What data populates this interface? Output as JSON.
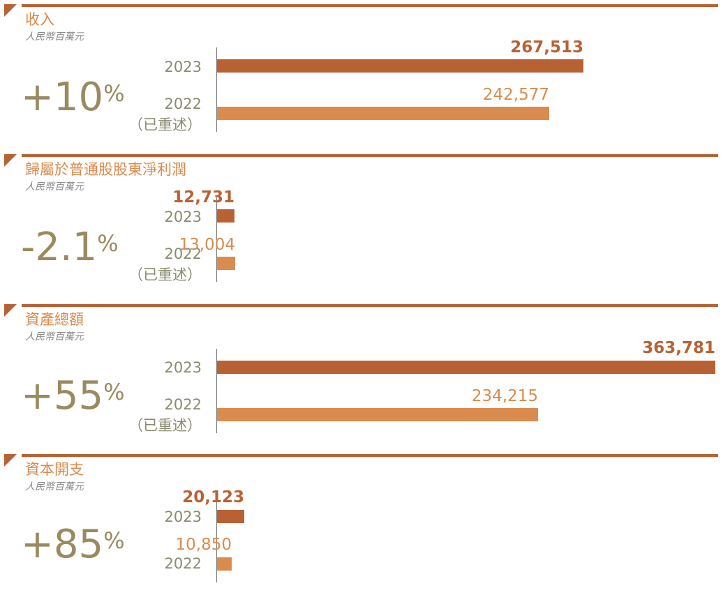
{
  "colors": {
    "current": "#b86234",
    "previous": "#d98c4e",
    "percent": "#9a8a60",
    "title": "#d98a4c"
  },
  "chart_data": [
    {
      "type": "bar",
      "title": "收入",
      "unit": "人民幣百萬元",
      "change": {
        "value": "+10",
        "symbol": "%"
      },
      "categories": [
        "2023",
        "2022"
      ],
      "category_notes": [
        "",
        "（已重述）"
      ],
      "values": [
        267513,
        242577
      ],
      "value_labels": [
        "267,513",
        "242,577"
      ]
    },
    {
      "type": "bar",
      "title": "歸屬於普通股股東淨利潤",
      "unit": "人民幣百萬元",
      "change": {
        "value": "-2.1",
        "symbol": "%"
      },
      "categories": [
        "2023",
        "2022"
      ],
      "category_notes": [
        "",
        "（已重述）"
      ],
      "values": [
        12731,
        13004
      ],
      "value_labels": [
        "12,731",
        "13,004"
      ]
    },
    {
      "type": "bar",
      "title": "資產總額",
      "unit": "人民幣百萬元",
      "change": {
        "value": "+55",
        "symbol": "%"
      },
      "categories": [
        "2023",
        "2022"
      ],
      "category_notes": [
        "",
        "（已重述）"
      ],
      "values": [
        363781,
        234215
      ],
      "value_labels": [
        "363,781",
        "234,215"
      ]
    },
    {
      "type": "bar",
      "title": "資本開支",
      "unit": "人民幣百萬元",
      "change": {
        "value": "+85",
        "symbol": "%"
      },
      "categories": [
        "2023",
        "2022"
      ],
      "category_notes": [
        "",
        ""
      ],
      "values": [
        20123,
        10850
      ],
      "value_labels": [
        "20,123",
        "10,850"
      ]
    }
  ]
}
